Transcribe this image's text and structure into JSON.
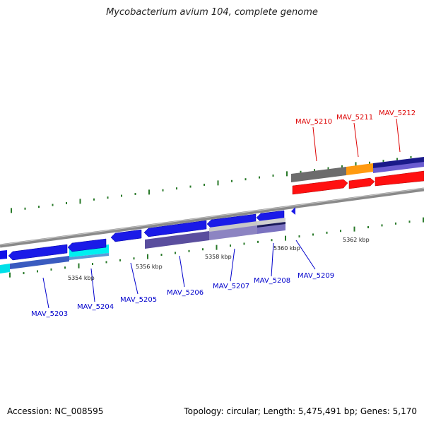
{
  "header": {
    "title": "Mycobacterium avium 104, complete genome"
  },
  "footer": {
    "accession": "Accession: NC_008595",
    "summary": "Topology: circular; Length: 5,475,491 bp; Genes: 5,170"
  },
  "colors": {
    "minus_strand_label": "#0000cc",
    "plus_strand_label": "#dd0000",
    "backbone": "#8a8a8a",
    "tick": "#2a7a2a"
  },
  "scale_labels": [
    "5354 kbp",
    "5356 kbp",
    "5358 kbp",
    "5360 kbp",
    "5362 kbp"
  ],
  "gene_labels": {
    "top": [
      "MAV_5210",
      "MAV_5211",
      "MAV_5212"
    ],
    "bottom": [
      "MAV_5203",
      "MAV_5204",
      "MAV_5205",
      "MAV_5206",
      "MAV_5207",
      "MAV_5208",
      "MAV_5209"
    ]
  }
}
